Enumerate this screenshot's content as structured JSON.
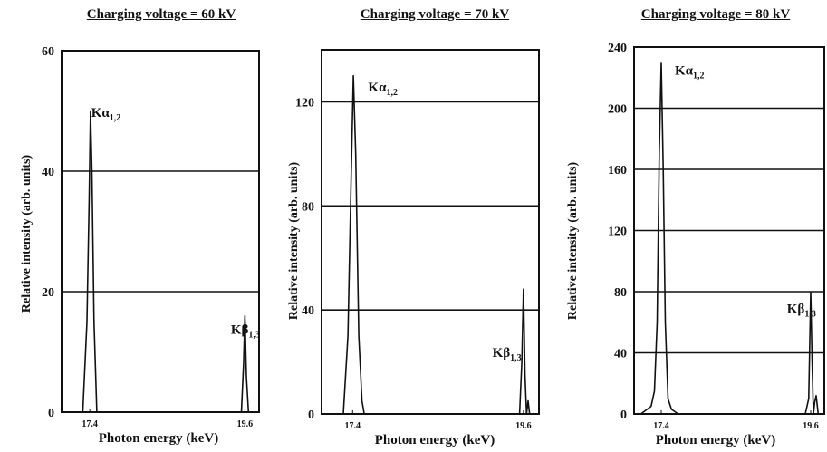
{
  "chart_data": [
    {
      "type": "line",
      "title": "Charging voltage = 60 kV",
      "xlabel": "Photon energy (keV)",
      "ylabel": "Relative intensity (arb. units)",
      "xlim": [
        17.0,
        19.8
      ],
      "ylim": [
        0,
        60
      ],
      "xticks": [
        "17.4",
        "19.6"
      ],
      "yticks": [
        "0",
        "20",
        "40",
        "60"
      ],
      "grid": "horizontal",
      "annotations": [
        {
          "text": "Kα",
          "sub": "1,2",
          "x": 17.42,
          "y": 49
        },
        {
          "text": "Kβ",
          "sub": "1,3",
          "x": 19.4,
          "y": 13
        }
      ],
      "series": [
        {
          "x": [
            17.3,
            17.36,
            17.39,
            17.41,
            17.43,
            17.46,
            17.5,
            19.55,
            19.58,
            19.6,
            19.62,
            19.65
          ],
          "y": [
            0,
            15,
            35,
            50,
            40,
            15,
            0,
            0,
            8,
            16,
            6,
            0
          ]
        }
      ]
    },
    {
      "type": "line",
      "title": "Charging voltage = 70 kV",
      "xlabel": "Photon energy (keV)",
      "ylabel": "Relative intensity (arb. units)",
      "xlim": [
        17.0,
        19.8
      ],
      "ylim": [
        0,
        140
      ],
      "xticks": [
        "17.4",
        "19.6"
      ],
      "yticks": [
        "0",
        "40",
        "80",
        "120"
      ],
      "grid": "horizontal",
      "annotations": [
        {
          "text": "Kα",
          "sub": "1,2",
          "x": 17.6,
          "y": 124
        },
        {
          "text": "Kβ",
          "sub": "1,3",
          "x": 19.2,
          "y": 22
        }
      ],
      "series": [
        {
          "x": [
            17.28,
            17.34,
            17.38,
            17.41,
            17.44,
            17.48,
            17.52,
            17.55,
            19.55,
            19.58,
            19.6,
            19.62,
            19.64,
            19.66,
            19.68,
            19.7
          ],
          "y": [
            0,
            30,
            90,
            130,
            100,
            30,
            5,
            0,
            0,
            20,
            48,
            15,
            0,
            5,
            0,
            0
          ]
        }
      ]
    },
    {
      "type": "line",
      "title": "Charging voltage = 80 kV",
      "xlabel": "Photon energy (keV)",
      "ylabel": "Relative intensity (arb. units)",
      "xlim": [
        17.0,
        19.8
      ],
      "ylim": [
        0,
        240
      ],
      "xticks": [
        "17.4",
        "19.6"
      ],
      "yticks": [
        "0",
        "40",
        "80",
        "120",
        "160",
        "200",
        "240"
      ],
      "grid": "horizontal",
      "annotations": [
        {
          "text": "Kα",
          "sub": "1,2",
          "x": 17.6,
          "y": 222
        },
        {
          "text": "Kβ",
          "sub": "1,3",
          "x": 19.25,
          "y": 66
        }
      ],
      "series": [
        {
          "x": [
            17.1,
            17.25,
            17.3,
            17.34,
            17.37,
            17.4,
            17.43,
            17.46,
            17.5,
            17.55,
            17.65,
            19.52,
            19.57,
            19.6,
            19.62,
            19.64,
            19.66,
            19.68,
            19.71,
            19.75
          ],
          "y": [
            0,
            5,
            15,
            60,
            170,
            230,
            160,
            60,
            10,
            3,
            0,
            0,
            10,
            80,
            35,
            0,
            8,
            12,
            0,
            0
          ]
        }
      ]
    }
  ]
}
